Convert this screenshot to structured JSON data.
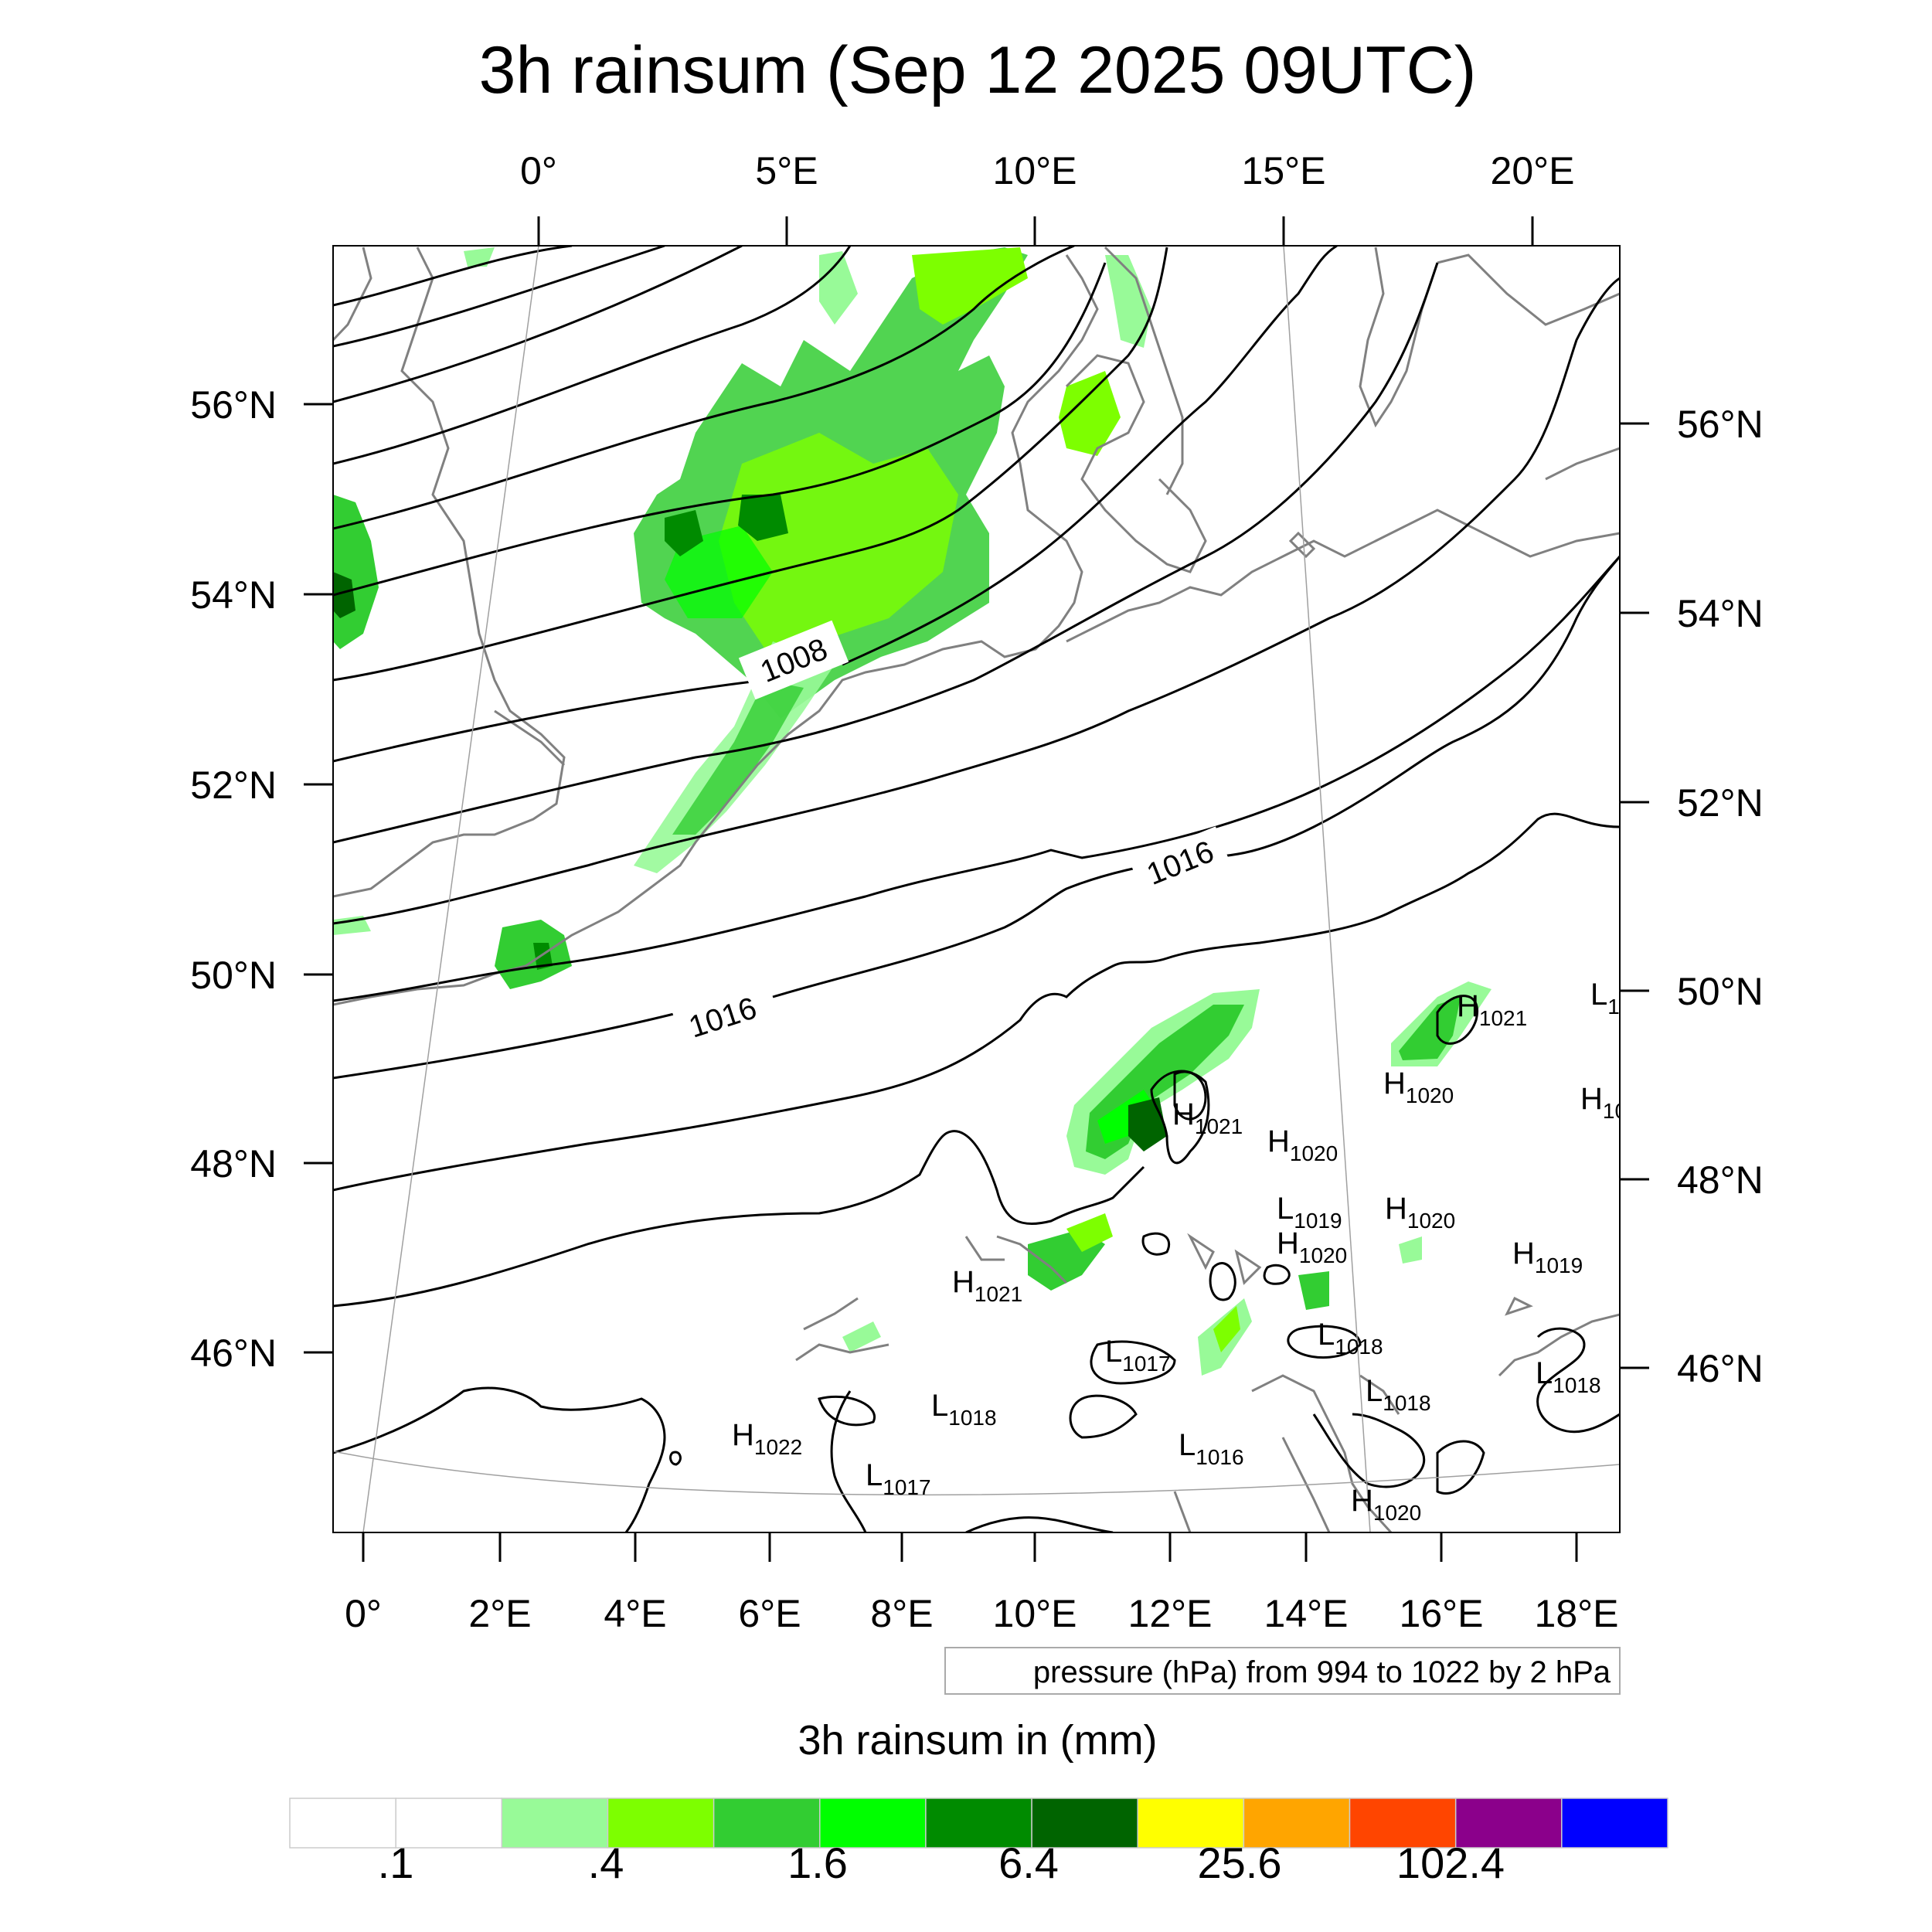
{
  "title": "3h rainsum (Sep 12 2025 09UTC)",
  "top_lon_ticks": [
    "0°",
    "5°E",
    "10°E",
    "15°E",
    "20°E"
  ],
  "bottom_lon_ticks": [
    "0°",
    "2°E",
    "4°E",
    "6°E",
    "8°E",
    "10°E",
    "12°E",
    "14°E",
    "16°E",
    "18°E"
  ],
  "left_lat_ticks": [
    "56°N",
    "54°N",
    "52°N",
    "50°N",
    "48°N",
    "46°N"
  ],
  "right_lat_ticks": [
    "56°N",
    "54°N",
    "52°N",
    "50°N",
    "48°N",
    "46°N"
  ],
  "pressure_note": "pressure (hPa) from 994 to 1022 by 2 hPa",
  "contour_labels": [
    "1008",
    "1016",
    "1016"
  ],
  "pressure_centers": [
    {
      "type": "H",
      "value": "1021"
    },
    {
      "type": "H",
      "value": "1020"
    },
    {
      "type": "L",
      "value": "1"
    },
    {
      "type": "H",
      "value": "10"
    },
    {
      "type": "H",
      "value": "1021"
    },
    {
      "type": "H",
      "value": "1020"
    },
    {
      "type": "L",
      "value": "1019"
    },
    {
      "type": "H",
      "value": "1020"
    },
    {
      "type": "H",
      "value": "1020"
    },
    {
      "type": "H",
      "value": "1019"
    },
    {
      "type": "H",
      "value": "1021"
    },
    {
      "type": "L",
      "value": "1018"
    },
    {
      "type": "L",
      "value": "1017"
    },
    {
      "type": "L",
      "value": "1018"
    },
    {
      "type": "L",
      "value": "1018"
    },
    {
      "type": "L",
      "value": "1018"
    },
    {
      "type": "H",
      "value": "1022"
    },
    {
      "type": "L",
      "value": "1016"
    },
    {
      "type": "L",
      "value": "1017"
    },
    {
      "type": "H",
      "value": "1020"
    }
  ],
  "colorbar": {
    "title": "3h rainsum in (mm)",
    "colors": [
      "#ffffff",
      "#ffffff",
      "#98fa98",
      "#7dff00",
      "#32cd32",
      "#00ff00",
      "#008b00",
      "#006400",
      "#ffff00",
      "#ffa500",
      "#ff4500",
      "#8b008b",
      "#0000ff"
    ],
    "labels": [
      ".1",
      ".4",
      "1.6",
      "6.4",
      "25.6",
      "102.4"
    ]
  },
  "colors": {
    "coast": "#808080",
    "isobar": "#000000",
    "graticule": "#a0a0a0"
  }
}
